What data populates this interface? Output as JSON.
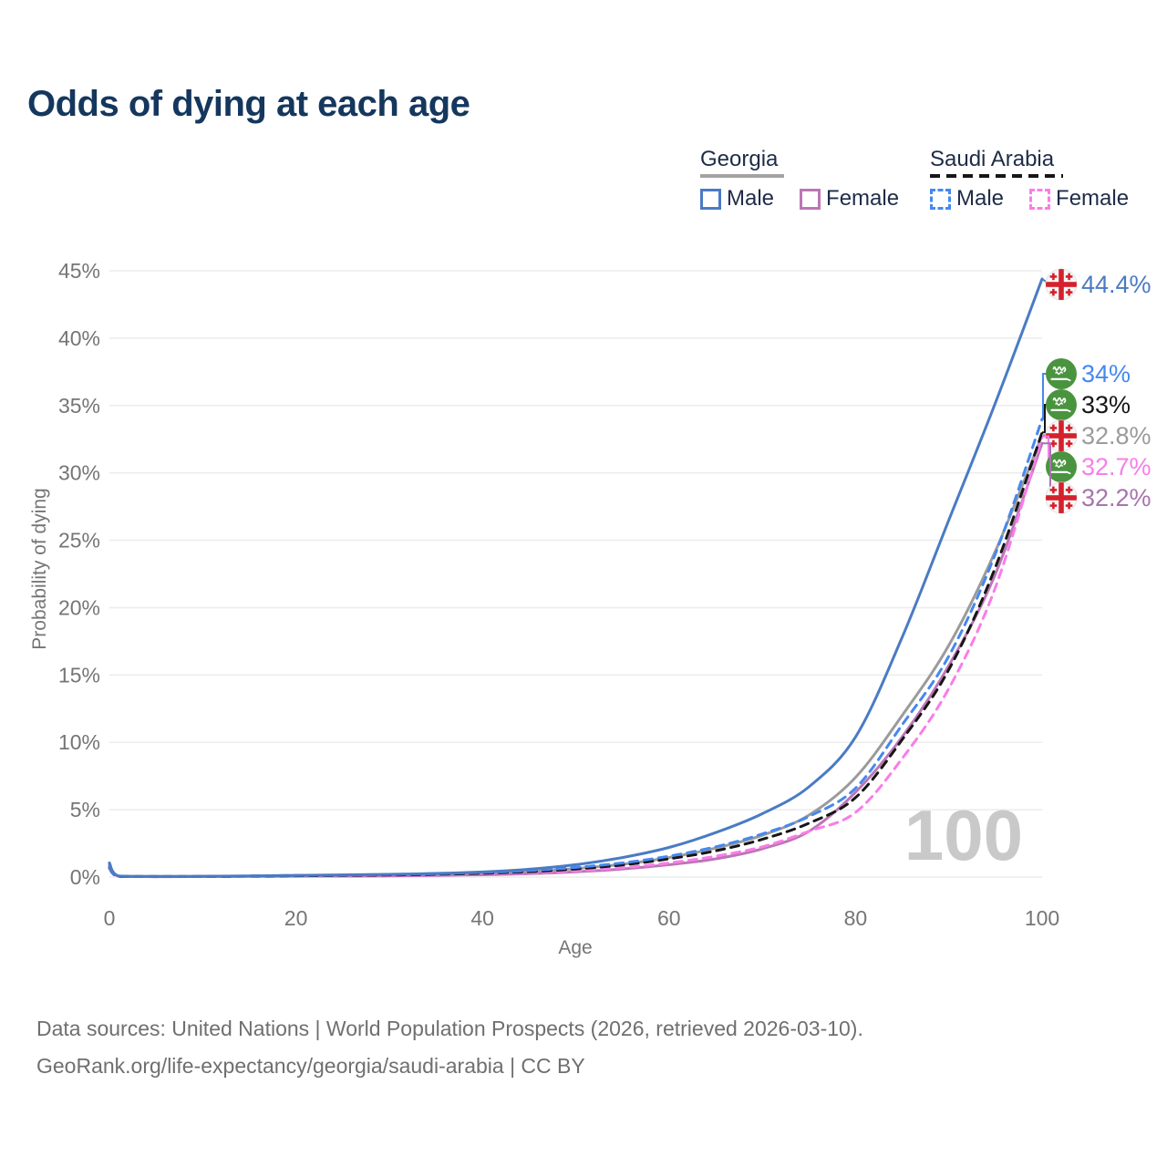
{
  "title": "Odds of dying at each age",
  "legend": {
    "groups": [
      {
        "id": "georgia",
        "label": "Georgia",
        "line_style": "solid",
        "underline_color": "#a3a3a3",
        "items": [
          {
            "series": "georgia_male",
            "label": "Male"
          },
          {
            "series": "georgia_female",
            "label": "Female"
          }
        ]
      },
      {
        "id": "saudi",
        "label": "Saudi Arabia",
        "line_style": "dashed",
        "underline_color": "#161616",
        "items": [
          {
            "series": "saudi_male",
            "label": "Male"
          },
          {
            "series": "saudi_female",
            "label": "Female"
          }
        ]
      }
    ]
  },
  "chart_data": {
    "type": "line",
    "title": "Odds of dying at each age",
    "xlabel": "Age",
    "ylabel": "Probability of dying",
    "xlim": [
      0,
      100
    ],
    "ylim": [
      0,
      45
    ],
    "x_ticks": [
      0,
      20,
      40,
      60,
      80,
      100
    ],
    "y_ticks": [
      0,
      5,
      10,
      15,
      20,
      25,
      30,
      35,
      40,
      45
    ],
    "y_tick_suffix": "%",
    "grid": "horizontal",
    "legend_position": "top-right",
    "watermark": "100",
    "ages": [
      0,
      1,
      5,
      10,
      15,
      20,
      25,
      30,
      35,
      40,
      45,
      50,
      55,
      60,
      65,
      70,
      75,
      80,
      85,
      90,
      95,
      100
    ],
    "series": [
      {
        "id": "georgia_male",
        "name": "Georgia Male",
        "country": "Georgia",
        "sex": "Male",
        "style": "solid",
        "color": "#4a7bc4",
        "flag": "georgia",
        "end_label": "44.4%",
        "end_value": 44.4,
        "values": [
          1.05,
          0.08,
          0.05,
          0.06,
          0.09,
          0.13,
          0.16,
          0.2,
          0.27,
          0.38,
          0.58,
          0.92,
          1.45,
          2.2,
          3.3,
          4.7,
          6.7,
          10.4,
          17.8,
          26.5,
          35.2,
          44.4
        ]
      },
      {
        "id": "saudi_male",
        "name": "Saudi Arabia Male",
        "country": "Saudi Arabia",
        "sex": "Male",
        "style": "dashed",
        "color": "#4688ef",
        "flag": "saudi",
        "end_label": "34%",
        "end_value": 34,
        "values": [
          0.75,
          0.06,
          0.04,
          0.05,
          0.08,
          0.12,
          0.15,
          0.19,
          0.25,
          0.34,
          0.48,
          0.72,
          1.05,
          1.55,
          2.25,
          3.2,
          4.5,
          6.6,
          11.3,
          16.4,
          24.0,
          34.0
        ]
      },
      {
        "id": "saudi_overall",
        "name": "Saudi Arabia Both sexes",
        "country": "Saudi Arabia",
        "sex": "Both",
        "style": "dashed",
        "color": "#161616",
        "flag": "saudi",
        "end_label": "33%",
        "end_value": 33,
        "values": [
          0.7,
          0.05,
          0.04,
          0.045,
          0.065,
          0.095,
          0.12,
          0.15,
          0.2,
          0.28,
          0.4,
          0.6,
          0.9,
          1.35,
          1.95,
          2.8,
          4.0,
          5.9,
          10.2,
          15.4,
          23.0,
          33.0
        ]
      },
      {
        "id": "georgia_overall",
        "name": "Georgia Both sexes",
        "country": "Georgia",
        "sex": "Both",
        "style": "solid",
        "color": "#9b9b9b",
        "flag": "georgia",
        "end_label": "32.8%",
        "end_value": 32.8,
        "values": [
          0.95,
          0.07,
          0.04,
          0.05,
          0.07,
          0.09,
          0.11,
          0.14,
          0.19,
          0.27,
          0.4,
          0.63,
          0.95,
          1.45,
          2.15,
          3.1,
          4.6,
          7.4,
          12.0,
          17.2,
          24.2,
          32.8
        ]
      },
      {
        "id": "saudi_female",
        "name": "Saudi Arabia Female",
        "country": "Saudi Arabia",
        "sex": "Female",
        "style": "dashed",
        "color": "#f97de9",
        "flag": "saudi",
        "end_label": "32.7%",
        "end_value": 32.7,
        "values": [
          0.65,
          0.05,
          0.03,
          0.04,
          0.05,
          0.07,
          0.09,
          0.11,
          0.15,
          0.22,
          0.31,
          0.46,
          0.7,
          1.05,
          1.55,
          2.25,
          3.4,
          4.8,
          8.8,
          14.0,
          21.5,
          32.7
        ]
      },
      {
        "id": "georgia_female",
        "name": "Georgia Female",
        "country": "Georgia",
        "sex": "Female",
        "style": "solid",
        "color": "#bb76b6",
        "label_color": "#a873ae",
        "flag": "georgia",
        "end_label": "32.2%",
        "end_value": 32.2,
        "values": [
          0.85,
          0.06,
          0.03,
          0.04,
          0.05,
          0.06,
          0.07,
          0.09,
          0.12,
          0.17,
          0.25,
          0.39,
          0.6,
          0.92,
          1.35,
          2.1,
          3.4,
          6.3,
          10.4,
          15.7,
          22.5,
          32.2
        ]
      }
    ]
  },
  "colors": {
    "title": "#15375e",
    "grid": "#ececec",
    "tick": "#757575",
    "watermark": "#c9c9c9",
    "georgia_flag_red": "#d4212d",
    "saudi_flag_green": "#4a9440"
  },
  "footer": {
    "line1": "Data sources: United Nations | World Population Prospects (2026, retrieved 2026-03-10).",
    "line2": "GeoRank.org/life-expectancy/georgia/saudi-arabia | CC BY"
  }
}
